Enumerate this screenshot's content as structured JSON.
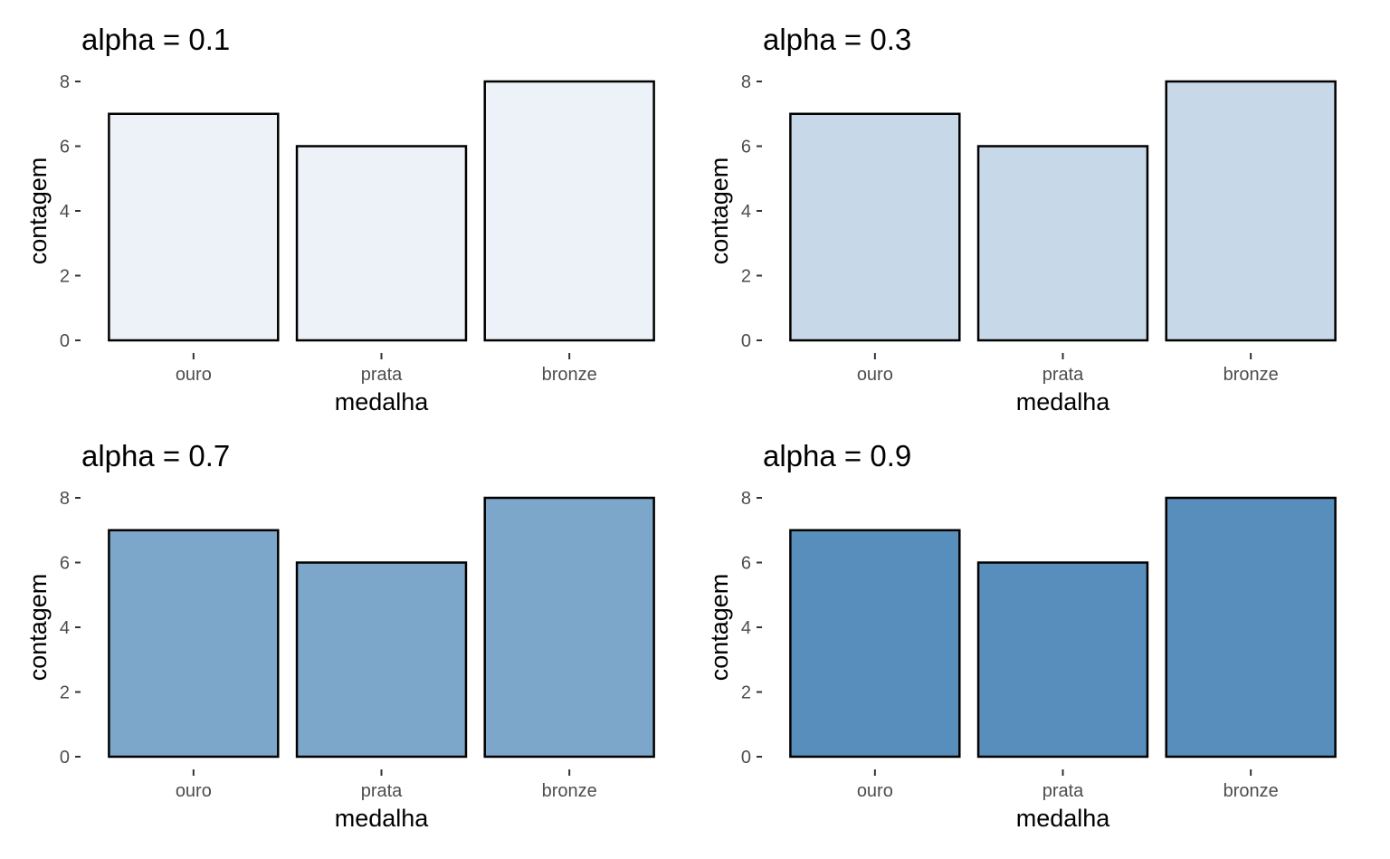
{
  "chart_data": [
    {
      "type": "bar",
      "title": "alpha = 0.1",
      "alpha": 0.1,
      "categories": [
        "ouro",
        "prata",
        "bronze"
      ],
      "values": [
        7,
        6,
        8
      ],
      "xlabel": "medalha",
      "ylabel": "contagem",
      "ylim": [
        0,
        8
      ],
      "yticks": [
        "0",
        "2",
        "4",
        "6",
        "8"
      ],
      "grid": false
    },
    {
      "type": "bar",
      "title": "alpha = 0.3",
      "alpha": 0.3,
      "categories": [
        "ouro",
        "prata",
        "bronze"
      ],
      "values": [
        7,
        6,
        8
      ],
      "xlabel": "medalha",
      "ylabel": "contagem",
      "ylim": [
        0,
        8
      ],
      "yticks": [
        "0",
        "2",
        "4",
        "6",
        "8"
      ],
      "grid": false
    },
    {
      "type": "bar",
      "title": "alpha = 0.7",
      "alpha": 0.7,
      "categories": [
        "ouro",
        "prata",
        "bronze"
      ],
      "values": [
        7,
        6,
        8
      ],
      "xlabel": "medalha",
      "ylabel": "contagem",
      "ylim": [
        0,
        8
      ],
      "yticks": [
        "0",
        "2",
        "4",
        "6",
        "8"
      ],
      "grid": false
    },
    {
      "type": "bar",
      "title": "alpha = 0.9",
      "alpha": 0.9,
      "categories": [
        "ouro",
        "prata",
        "bronze"
      ],
      "values": [
        7,
        6,
        8
      ],
      "xlabel": "medalha",
      "ylabel": "contagem",
      "ylim": [
        0,
        8
      ],
      "yticks": [
        "0",
        "2",
        "4",
        "6",
        "8"
      ],
      "grid": false
    }
  ],
  "colors": {
    "fill": "#4682B4",
    "outline": "#000000",
    "tick_text": "#4d4d4d"
  }
}
